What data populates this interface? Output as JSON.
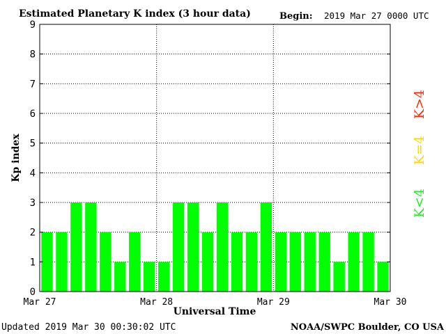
{
  "header": {
    "title": "Estimated Planetary K index (3 hour data)",
    "begin_label": "Begin:",
    "begin_value": "2019 Mar 27 0000 UTC"
  },
  "footer": {
    "updated": "Updated 2019 Mar 30 00:30:02 UTC",
    "source": "NOAA/SWPC Boulder, CO USA"
  },
  "legend": {
    "high": {
      "label": "K>4",
      "color": "#ff2a00"
    },
    "equal": {
      "label": "K=4",
      "color": "#ffd700"
    },
    "low": {
      "label": "K<4",
      "color": "#22ee22"
    }
  },
  "chart_data": {
    "type": "bar",
    "title": "Estimated Planetary K index (3 hour data)",
    "xlabel": "Universal Time",
    "ylabel": "Kp index",
    "ylim": [
      0,
      9
    ],
    "yticks": [
      0,
      1,
      2,
      3,
      4,
      5,
      6,
      7,
      8,
      9
    ],
    "xticks": [
      "Mar 27",
      "Mar 28",
      "Mar 29",
      "Mar 30"
    ],
    "grid": true,
    "bar_color": "#00ff00",
    "series": [
      {
        "values": [
          2,
          2,
          3,
          3,
          2,
          1,
          2,
          1,
          1,
          3,
          3,
          2,
          3,
          2,
          2,
          3,
          2,
          2,
          2,
          2,
          1,
          2,
          2,
          1
        ]
      }
    ]
  }
}
